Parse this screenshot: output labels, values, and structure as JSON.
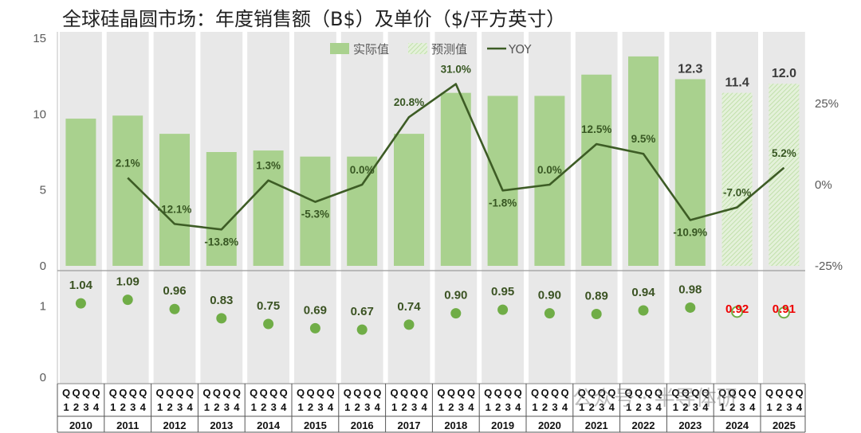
{
  "title": "全球硅晶圆市场：年度销售额（B$）及单价（$/平方英寸）",
  "watermark": "公众号 · 半导体研",
  "colors": {
    "bar": "#a9d18e",
    "line": "#3d5c25",
    "dot": "#70ad47",
    "forecast_label": "#ee0000",
    "stripe": "#e8e8e8"
  },
  "chart_data": [
    {
      "type": "bar",
      "categories": [
        "2010",
        "2011",
        "2012",
        "2013",
        "2014",
        "2015",
        "2016",
        "2017",
        "2018",
        "2019",
        "2020",
        "2021",
        "2022",
        "2023",
        "2024",
        "2025"
      ],
      "series": [
        {
          "name": "实际值",
          "values": [
            9.7,
            9.9,
            8.7,
            7.5,
            7.6,
            7.2,
            7.2,
            8.7,
            11.4,
            11.2,
            11.2,
            12.6,
            13.8,
            12.3,
            null,
            null
          ]
        },
        {
          "name": "预测值",
          "values": [
            null,
            null,
            null,
            null,
            null,
            null,
            null,
            null,
            null,
            null,
            null,
            null,
            null,
            null,
            11.4,
            12.0
          ]
        }
      ],
      "value_labels": {
        "2023": "12.3",
        "2024": "11.4",
        "2025": "12.0"
      },
      "ylim": [
        0,
        15
      ],
      "yticks": [
        "0",
        "5",
        "10",
        "15"
      ],
      "grid": false,
      "legend": "top-right"
    },
    {
      "type": "line",
      "series_name": "YOY",
      "x": [
        "2011",
        "2012",
        "2013",
        "2014",
        "2015",
        "2016",
        "2017",
        "2018",
        "2019",
        "2020",
        "2021",
        "2022",
        "2023",
        "2024",
        "2025"
      ],
      "values": [
        2.1,
        -12.1,
        -13.8,
        1.3,
        -5.3,
        0.0,
        20.8,
        31.0,
        -1.8,
        0.0,
        12.5,
        9.5,
        -10.9,
        -7.0,
        5.2
      ],
      "labels": [
        "2.1%",
        "-12.1%",
        "-13.8%",
        "1.3%",
        "-5.3%",
        "0.0%",
        "20.8%",
        "31.0%",
        "-1.8%",
        "0.0%",
        "12.5%",
        "9.5%",
        "-10.9%",
        "-7.0%",
        "5.2%"
      ],
      "ylim": [
        -25,
        25
      ],
      "yticks": [
        "-25%",
        "0%",
        "25%"
      ],
      "axis": "secondary-right"
    },
    {
      "type": "scatter",
      "x": [
        "2010",
        "2011",
        "2012",
        "2013",
        "2014",
        "2015",
        "2016",
        "2017",
        "2018",
        "2019",
        "2020",
        "2021",
        "2022",
        "2023",
        "2024",
        "2025"
      ],
      "values": [
        1.04,
        1.09,
        0.96,
        0.83,
        0.75,
        0.69,
        0.67,
        0.74,
        0.9,
        0.95,
        0.9,
        0.89,
        0.94,
        0.98,
        0.92,
        0.91
      ],
      "labels": [
        "1.04",
        "1.09",
        "0.96",
        "0.83",
        "0.75",
        "0.69",
        "0.67",
        "0.74",
        "0.90",
        "0.95",
        "0.90",
        "0.89",
        "0.94",
        "0.98",
        "0.92",
        "0.91"
      ],
      "forecast": [
        false,
        false,
        false,
        false,
        false,
        false,
        false,
        false,
        false,
        false,
        false,
        false,
        false,
        false,
        true,
        true
      ],
      "yticks": [
        "0",
        "1"
      ],
      "ylim": [
        0,
        1.5
      ]
    }
  ],
  "quarter_row": {
    "letter": "Q",
    "numbers": [
      "1",
      "2",
      "3",
      "4"
    ]
  }
}
